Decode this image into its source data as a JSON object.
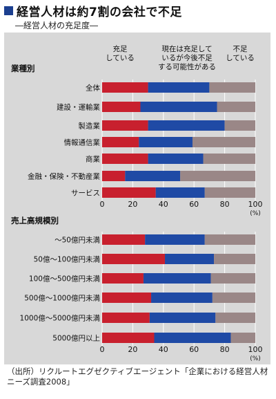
{
  "header": {
    "title": "経営人材は約7割の会社で不足",
    "subtitle": "―経営人材の充足度―"
  },
  "legend": {
    "items": [
      {
        "line1": "充足",
        "line2": "している",
        "line3": ""
      },
      {
        "line1": "現在は充足して",
        "line2": "いるが今後不足",
        "line3": "する可能性がある"
      },
      {
        "line1": "不足",
        "line2": "している",
        "line3": ""
      }
    ]
  },
  "colors": {
    "sufficient": "#c8202e",
    "future_shortage": "#1f4aa5",
    "insufficient": "#9a8787",
    "panel": "#d8d8d8",
    "grid": "#ffffff"
  },
  "chart_data": [
    {
      "type": "bar",
      "orientation": "horizontal-stacked",
      "title": "業種別",
      "categories": [
        "全体",
        "建設・運輸業",
        "製造業",
        "情報通信業",
        "商業",
        "金融・保険・不動産業",
        "サービス"
      ],
      "series": [
        {
          "name": "充足している",
          "values": [
            30,
            25,
            30,
            24,
            30,
            15,
            35
          ]
        },
        {
          "name": "現在は充足しているが今後不足する可能性がある",
          "values": [
            40,
            50,
            50,
            35,
            36,
            36,
            32
          ]
        },
        {
          "name": "不足している",
          "values": [
            30,
            25,
            20,
            41,
            34,
            49,
            33
          ]
        }
      ],
      "xlim": [
        0,
        100
      ],
      "xticks": [
        "0",
        "20",
        "40",
        "60",
        "80",
        "100"
      ],
      "xunit": "(%)",
      "grid": true
    },
    {
      "type": "bar",
      "orientation": "horizontal-stacked",
      "title": "売上高規模別",
      "categories": [
        "～50億円未満",
        "50億～100億円未満",
        "100億～500億円未満",
        "500億～1000億円未満",
        "1000億～5000億円未満",
        "5000億円以上"
      ],
      "series": [
        {
          "name": "充足している",
          "values": [
            28,
            41,
            27,
            32,
            31,
            34
          ]
        },
        {
          "name": "現在は充足しているが今後不足する可能性がある",
          "values": [
            39,
            32,
            44,
            40,
            43,
            50
          ]
        },
        {
          "name": "不足している",
          "values": [
            33,
            27,
            29,
            28,
            26,
            16
          ]
        }
      ],
      "xlim": [
        0,
        100
      ],
      "xticks": [
        "0",
        "20",
        "40",
        "60",
        "80",
        "100"
      ],
      "xunit": "(%)",
      "grid": true
    }
  ],
  "footer": {
    "line1": "（出所）リクルートエグゼクティブエージェント「企業における経営人材",
    "line2": "ニーズ調査2008」"
  }
}
